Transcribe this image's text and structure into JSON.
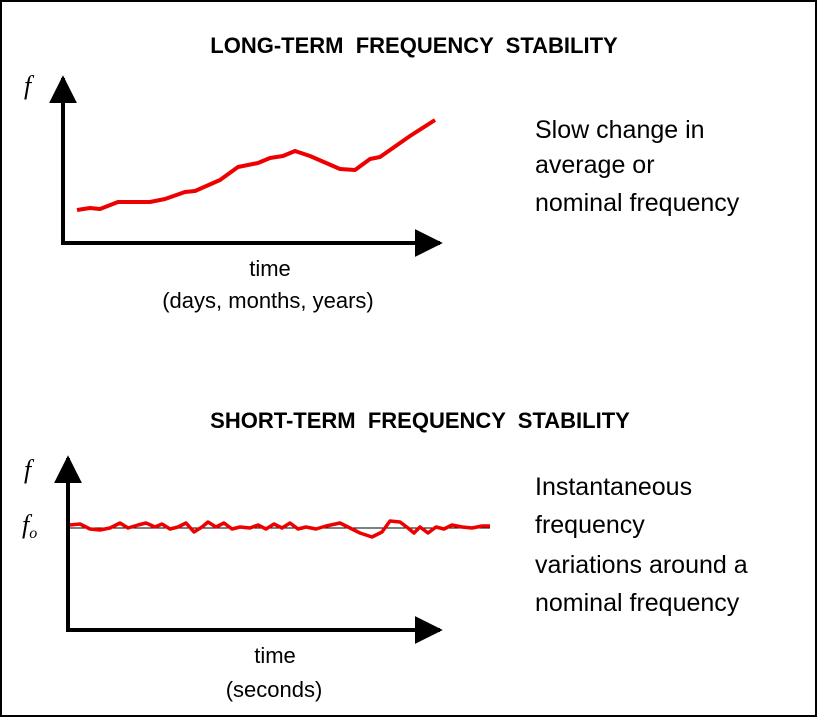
{
  "panels": [
    {
      "title": "LONG-TERM  FREQUENCY  STABILITY",
      "y_label": "f",
      "x_label": "time",
      "x_sublabel": "(days, months, years)",
      "description": [
        "Slow change in",
        "average or",
        "nominal frequency"
      ]
    },
    {
      "title": "SHORT-TERM  FREQUENCY  STABILITY",
      "y_label": "f",
      "nominal_label": {
        "base": "f",
        "subscript": "o"
      },
      "x_label": "time",
      "x_sublabel": "(seconds)",
      "description": [
        "Instantaneous",
        "frequency",
        "variations around a",
        "nominal frequency"
      ]
    }
  ]
}
